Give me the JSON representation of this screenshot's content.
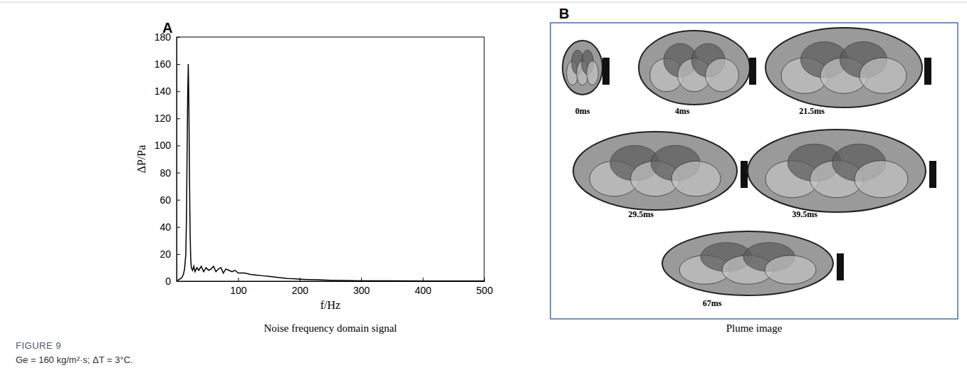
{
  "chart_data": {
    "type": "line",
    "panel_label": "A",
    "subtitle": "Noise frequency domain signal",
    "x_label": "f/Hz",
    "y_label": "ΔP/Pa",
    "color": "#000000",
    "x": [
      1,
      3,
      5,
      7,
      9,
      11,
      13,
      15,
      16,
      17,
      18,
      19,
      20,
      21,
      22,
      23,
      24,
      26,
      28,
      30,
      33,
      36,
      40,
      44,
      48,
      52,
      56,
      60,
      64,
      68,
      72,
      76,
      80,
      85,
      90,
      95,
      100,
      110,
      120,
      130,
      140,
      150,
      160,
      170,
      180,
      190,
      200,
      215,
      230,
      250,
      270,
      300,
      350,
      400,
      450,
      500
    ],
    "values": [
      0.5,
      1,
      1.5,
      2,
      3,
      5,
      9,
      20,
      45,
      90,
      135,
      160,
      128,
      75,
      35,
      16,
      10,
      8,
      11,
      7,
      10,
      8,
      11,
      7,
      10,
      8,
      9,
      11,
      7,
      9,
      10,
      6,
      9,
      8,
      7,
      8,
      6,
      6,
      5,
      4.5,
      4,
      3.5,
      3,
      2.5,
      2,
      1.8,
      1.5,
      1.2,
      1,
      0.7,
      0.5,
      0.3,
      0.2,
      0.1,
      0.1,
      0.1
    ],
    "xlim": [
      0,
      500
    ],
    "xticks": [
      100,
      200,
      300,
      400,
      500
    ],
    "ylim": [
      0,
      180
    ],
    "yticks": [
      0,
      20,
      40,
      60,
      80,
      100,
      120,
      140,
      160,
      180
    ],
    "grid": false
  },
  "image_panel": {
    "panel_label": "B",
    "subtitle": "Plume image",
    "frames": [
      "0ms",
      "4ms",
      "21.5ms",
      "29.5ms",
      "39.5ms",
      "67ms"
    ]
  },
  "figure": {
    "label": "FIGURE 9",
    "caption": "Ge = 160 kg/m²·s; ΔT = 3°C."
  }
}
